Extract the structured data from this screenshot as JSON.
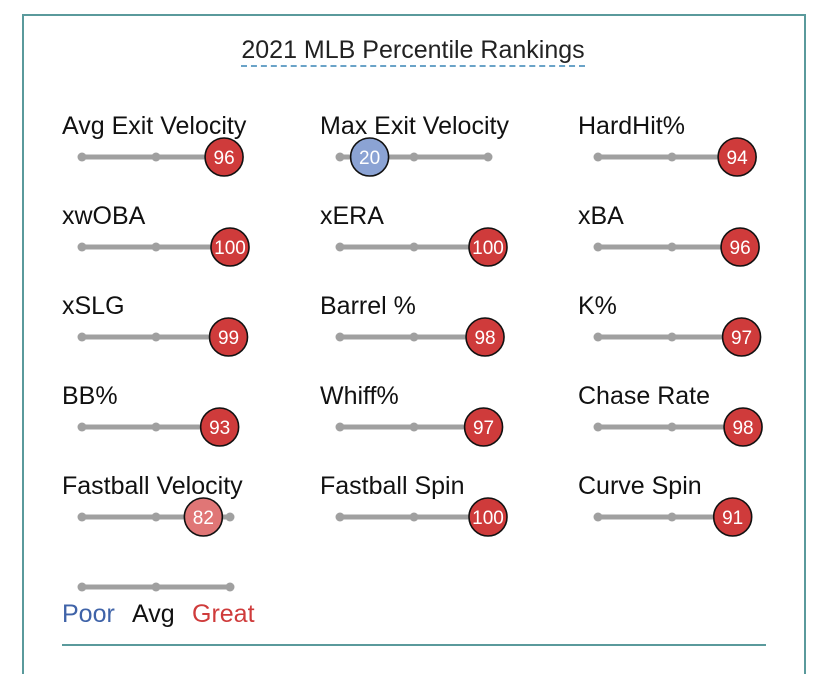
{
  "title": "2021 MLB Percentile Rankings",
  "chart_data": {
    "type": "percentile-bars",
    "title": "2021 MLB Percentile Rankings",
    "range": [
      0,
      100
    ],
    "metrics": [
      {
        "label": "Avg Exit Velocity",
        "value": 96,
        "color": "#cf3b3b"
      },
      {
        "label": "Max Exit Velocity",
        "value": 20,
        "color": "#8ba3d4"
      },
      {
        "label": "HardHit%",
        "value": 94,
        "color": "#cf3b3b"
      },
      {
        "label": "xwOBA",
        "value": 100,
        "color": "#cf3b3b"
      },
      {
        "label": "xERA",
        "value": 100,
        "color": "#cf3b3b"
      },
      {
        "label": "xBA",
        "value": 96,
        "color": "#cf3b3b"
      },
      {
        "label": "xSLG",
        "value": 99,
        "color": "#cf3b3b"
      },
      {
        "label": "Barrel %",
        "value": 98,
        "color": "#cf3b3b"
      },
      {
        "label": "K%",
        "value": 97,
        "color": "#cf3b3b"
      },
      {
        "label": "BB%",
        "value": 93,
        "color": "#cf3b3b"
      },
      {
        "label": "Whiff%",
        "value": 97,
        "color": "#cf3b3b"
      },
      {
        "label": "Chase Rate",
        "value": 98,
        "color": "#cf3b3b"
      },
      {
        "label": "Fastball Velocity",
        "value": 82,
        "color": "#e07676"
      },
      {
        "label": "Fastball Spin",
        "value": 100,
        "color": "#cf3b3b"
      },
      {
        "label": "Curve Spin",
        "value": 91,
        "color": "#cf3b3b"
      }
    ],
    "legend": {
      "poor": {
        "label": "Poor",
        "color": "#3f63a8"
      },
      "avg": {
        "label": "Avg",
        "color": "#111111"
      },
      "great": {
        "label": "Great",
        "color": "#cf3b3b"
      }
    }
  }
}
